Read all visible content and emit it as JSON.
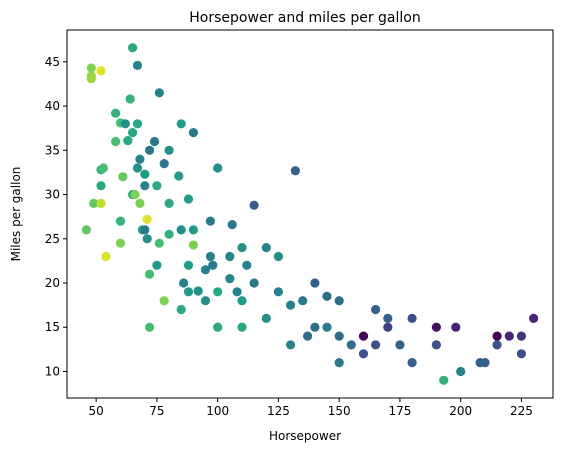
{
  "chart_data": {
    "type": "scatter",
    "title": "Horsepower and miles per gallon",
    "xlabel": "Horsepower",
    "ylabel": "Miles per gallon",
    "xlim": [
      38,
      238
    ],
    "ylim": [
      7.0,
      48.6
    ],
    "xticks": [
      50,
      75,
      100,
      125,
      150,
      175,
      200,
      225
    ],
    "yticks": [
      10,
      15,
      20,
      25,
      30,
      35,
      40,
      45
    ],
    "grid": false,
    "color_encoding": "viridis colormap (dark purple to yellow)",
    "points": [
      {
        "x": 46,
        "y": 26.0,
        "c": 0.75
      },
      {
        "x": 48,
        "y": 43.1,
        "c": 0.85
      },
      {
        "x": 48,
        "y": 43.4,
        "c": 0.85
      },
      {
        "x": 48,
        "y": 44.3,
        "c": 0.8
      },
      {
        "x": 49,
        "y": 29.0,
        "c": 0.75
      },
      {
        "x": 52,
        "y": 44.0,
        "c": 0.95
      },
      {
        "x": 52,
        "y": 29.0,
        "c": 0.9
      },
      {
        "x": 52,
        "y": 31.0,
        "c": 0.6
      },
      {
        "x": 52,
        "y": 32.8,
        "c": 0.65
      },
      {
        "x": 53,
        "y": 33.0,
        "c": 0.7
      },
      {
        "x": 54,
        "y": 23.0,
        "c": 0.95
      },
      {
        "x": 58,
        "y": 36.0,
        "c": 0.7
      },
      {
        "x": 58,
        "y": 39.2,
        "c": 0.65
      },
      {
        "x": 60,
        "y": 24.5,
        "c": 0.8
      },
      {
        "x": 60,
        "y": 27.0,
        "c": 0.65
      },
      {
        "x": 60,
        "y": 38.1,
        "c": 0.7
      },
      {
        "x": 61,
        "y": 32.0,
        "c": 0.75
      },
      {
        "x": 62,
        "y": 38.0,
        "c": 0.5
      },
      {
        "x": 63,
        "y": 36.1,
        "c": 0.6
      },
      {
        "x": 64,
        "y": 40.8,
        "c": 0.65
      },
      {
        "x": 65,
        "y": 46.6,
        "c": 0.6
      },
      {
        "x": 65,
        "y": 30.0,
        "c": 0.6
      },
      {
        "x": 65,
        "y": 37.0,
        "c": 0.6
      },
      {
        "x": 66,
        "y": 30.0,
        "c": 0.8
      },
      {
        "x": 67,
        "y": 44.6,
        "c": 0.45
      },
      {
        "x": 67,
        "y": 38.0,
        "c": 0.6
      },
      {
        "x": 67,
        "y": 33.0,
        "c": 0.5
      },
      {
        "x": 68,
        "y": 29.0,
        "c": 0.8
      },
      {
        "x": 68,
        "y": 34.0,
        "c": 0.45
      },
      {
        "x": 69,
        "y": 26.0,
        "c": 0.6
      },
      {
        "x": 70,
        "y": 31.0,
        "c": 0.45
      },
      {
        "x": 70,
        "y": 32.3,
        "c": 0.55
      },
      {
        "x": 70,
        "y": 26.0,
        "c": 0.4
      },
      {
        "x": 71,
        "y": 27.2,
        "c": 0.95
      },
      {
        "x": 71,
        "y": 25.0,
        "c": 0.5
      },
      {
        "x": 72,
        "y": 15.0,
        "c": 0.7
      },
      {
        "x": 72,
        "y": 21.0,
        "c": 0.7
      },
      {
        "x": 72,
        "y": 35.0,
        "c": 0.4
      },
      {
        "x": 74,
        "y": 36.0,
        "c": 0.4
      },
      {
        "x": 75,
        "y": 31.0,
        "c": 0.6
      },
      {
        "x": 75,
        "y": 22.0,
        "c": 0.55
      },
      {
        "x": 76,
        "y": 41.5,
        "c": 0.45
      },
      {
        "x": 76,
        "y": 24.5,
        "c": 0.7
      },
      {
        "x": 78,
        "y": 18.0,
        "c": 0.8
      },
      {
        "x": 78,
        "y": 33.5,
        "c": 0.4
      },
      {
        "x": 80,
        "y": 35.0,
        "c": 0.5
      },
      {
        "x": 80,
        "y": 29.0,
        "c": 0.6
      },
      {
        "x": 80,
        "y": 25.5,
        "c": 0.65
      },
      {
        "x": 84,
        "y": 32.1,
        "c": 0.55
      },
      {
        "x": 85,
        "y": 38.0,
        "c": 0.55
      },
      {
        "x": 85,
        "y": 17.0,
        "c": 0.6
      },
      {
        "x": 85,
        "y": 26.0,
        "c": 0.5
      },
      {
        "x": 86,
        "y": 20.0,
        "c": 0.45
      },
      {
        "x": 88,
        "y": 29.5,
        "c": 0.55
      },
      {
        "x": 88,
        "y": 22.0,
        "c": 0.55
      },
      {
        "x": 88,
        "y": 19.0,
        "c": 0.55
      },
      {
        "x": 90,
        "y": 37.0,
        "c": 0.4
      },
      {
        "x": 90,
        "y": 24.3,
        "c": 0.8
      },
      {
        "x": 90,
        "y": 26.0,
        "c": 0.55
      },
      {
        "x": 92,
        "y": 19.1,
        "c": 0.5
      },
      {
        "x": 95,
        "y": 21.5,
        "c": 0.45
      },
      {
        "x": 95,
        "y": 18.0,
        "c": 0.5
      },
      {
        "x": 97,
        "y": 27.0,
        "c": 0.4
      },
      {
        "x": 97,
        "y": 23.0,
        "c": 0.45
      },
      {
        "x": 98,
        "y": 22.0,
        "c": 0.4
      },
      {
        "x": 100,
        "y": 15.0,
        "c": 0.6
      },
      {
        "x": 100,
        "y": 33.0,
        "c": 0.5
      },
      {
        "x": 100,
        "y": 19.0,
        "c": 0.6
      },
      {
        "x": 105,
        "y": 23.0,
        "c": 0.45
      },
      {
        "x": 105,
        "y": 20.5,
        "c": 0.45
      },
      {
        "x": 106,
        "y": 26.6,
        "c": 0.4
      },
      {
        "x": 108,
        "y": 19.0,
        "c": 0.45
      },
      {
        "x": 110,
        "y": 15.0,
        "c": 0.6
      },
      {
        "x": 110,
        "y": 18.0,
        "c": 0.55
      },
      {
        "x": 110,
        "y": 24.0,
        "c": 0.5
      },
      {
        "x": 112,
        "y": 22.0,
        "c": 0.45
      },
      {
        "x": 115,
        "y": 28.8,
        "c": 0.3
      },
      {
        "x": 115,
        "y": 20.0,
        "c": 0.4
      },
      {
        "x": 120,
        "y": 16.0,
        "c": 0.5
      },
      {
        "x": 120,
        "y": 24.0,
        "c": 0.45
      },
      {
        "x": 125,
        "y": 23.0,
        "c": 0.5
      },
      {
        "x": 125,
        "y": 19.0,
        "c": 0.45
      },
      {
        "x": 130,
        "y": 13.0,
        "c": 0.45
      },
      {
        "x": 130,
        "y": 17.5,
        "c": 0.45
      },
      {
        "x": 132,
        "y": 32.7,
        "c": 0.3
      },
      {
        "x": 135,
        "y": 18.0,
        "c": 0.4
      },
      {
        "x": 137,
        "y": 14.0,
        "c": 0.35
      },
      {
        "x": 140,
        "y": 20.0,
        "c": 0.3
      },
      {
        "x": 140,
        "y": 15.0,
        "c": 0.35
      },
      {
        "x": 145,
        "y": 18.5,
        "c": 0.35
      },
      {
        "x": 145,
        "y": 15.0,
        "c": 0.4
      },
      {
        "x": 150,
        "y": 14.0,
        "c": 0.35
      },
      {
        "x": 150,
        "y": 18.0,
        "c": 0.35
      },
      {
        "x": 150,
        "y": 11.0,
        "c": 0.4
      },
      {
        "x": 155,
        "y": 13.0,
        "c": 0.35
      },
      {
        "x": 160,
        "y": 14.0,
        "c": 0.0
      },
      {
        "x": 160,
        "y": 12.0,
        "c": 0.25
      },
      {
        "x": 165,
        "y": 17.0,
        "c": 0.3
      },
      {
        "x": 165,
        "y": 13.0,
        "c": 0.25
      },
      {
        "x": 170,
        "y": 15.0,
        "c": 0.2
      },
      {
        "x": 170,
        "y": 16.0,
        "c": 0.3
      },
      {
        "x": 175,
        "y": 13.0,
        "c": 0.3
      },
      {
        "x": 180,
        "y": 16.0,
        "c": 0.25
      },
      {
        "x": 180,
        "y": 11.0,
        "c": 0.3
      },
      {
        "x": 190,
        "y": 15.0,
        "c": 0.05
      },
      {
        "x": 190,
        "y": 13.0,
        "c": 0.25
      },
      {
        "x": 193,
        "y": 9.0,
        "c": 0.65
      },
      {
        "x": 198,
        "y": 15.0,
        "c": 0.1
      },
      {
        "x": 200,
        "y": 10.0,
        "c": 0.45
      },
      {
        "x": 208,
        "y": 11.0,
        "c": 0.3
      },
      {
        "x": 210,
        "y": 11.0,
        "c": 0.3
      },
      {
        "x": 215,
        "y": 14.0,
        "c": 0.0
      },
      {
        "x": 215,
        "y": 13.0,
        "c": 0.25
      },
      {
        "x": 220,
        "y": 14.0,
        "c": 0.1
      },
      {
        "x": 225,
        "y": 14.0,
        "c": 0.15
      },
      {
        "x": 225,
        "y": 12.0,
        "c": 0.25
      },
      {
        "x": 230,
        "y": 16.0,
        "c": 0.1
      }
    ]
  }
}
